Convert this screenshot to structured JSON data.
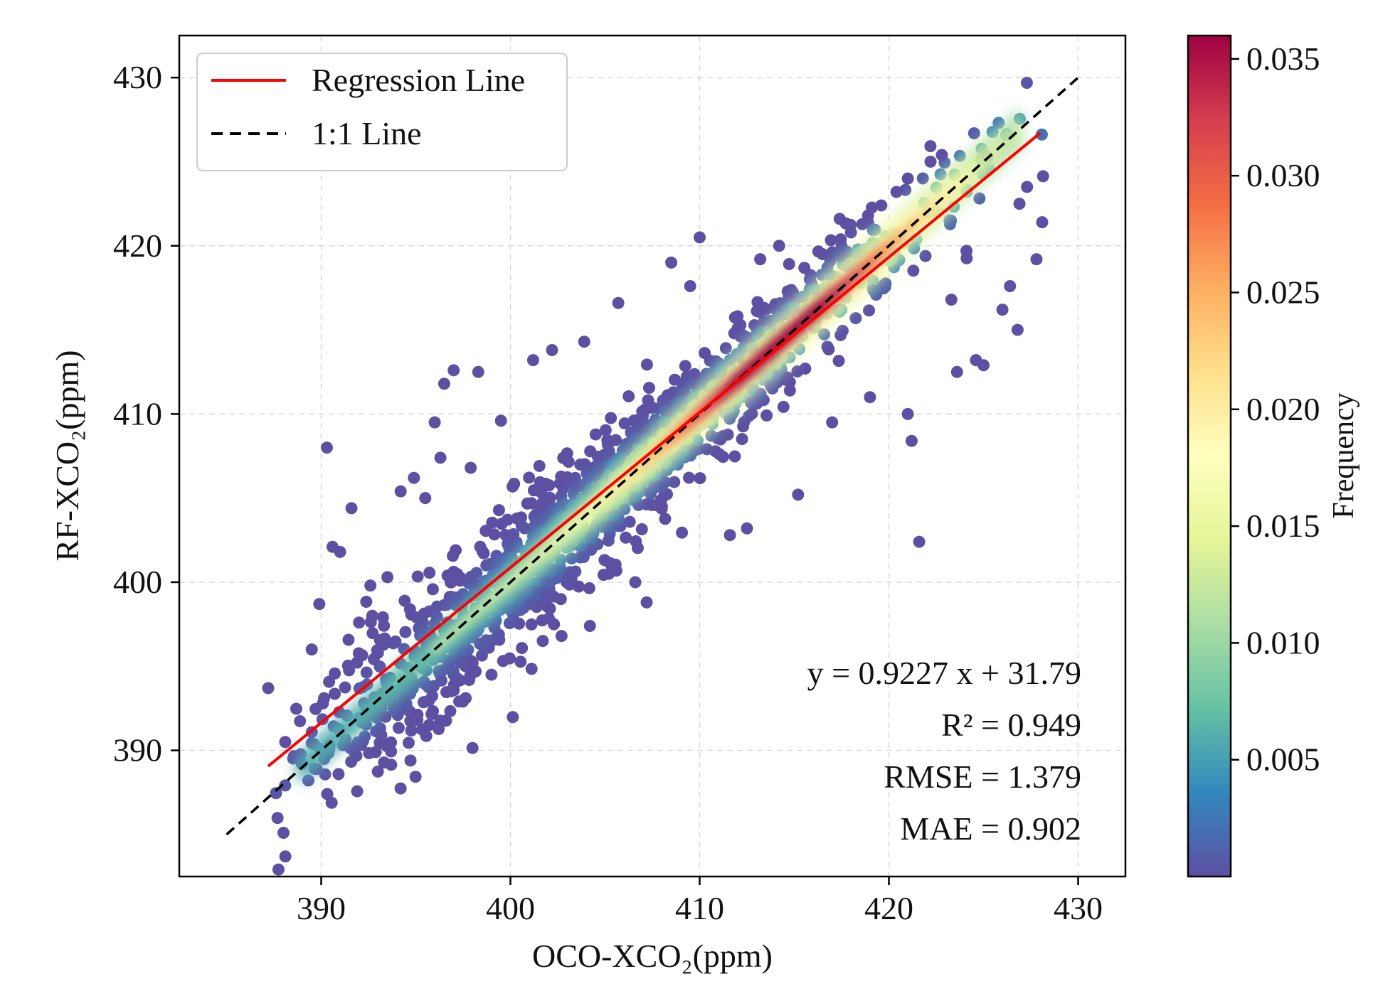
{
  "chart_data": {
    "type": "scatter",
    "title": "",
    "xlabel": "OCO-XCO₂(ppm)",
    "ylabel": "RF-XCO₂(ppm)",
    "xlim": [
      382.5,
      432.5
    ],
    "ylim": [
      382.5,
      432.5
    ],
    "xticks": [
      390,
      400,
      410,
      420,
      430
    ],
    "yticks": [
      390,
      400,
      410,
      420,
      430
    ],
    "grid": true,
    "legend_position": "top-left",
    "legend": [
      {
        "label": "Regression Line",
        "style": "solid",
        "color": "#ff0000"
      },
      {
        "label": "1:1 Line",
        "style": "dashed",
        "color": "#000000"
      }
    ],
    "regression": {
      "slope": 0.9227,
      "intercept": 31.79,
      "x_range": [
        387.2,
        428.0
      ]
    },
    "identity_line": {
      "x_range": [
        385,
        430
      ]
    },
    "annotations": [
      "y = 0.9227 x + 31.79",
      "R² = 0.949",
      "RMSE = 1.379",
      "MAE = 0.902"
    ],
    "colorbar": {
      "label": "Frequency",
      "min": 0.0,
      "max": 0.036,
      "ticks": [
        0.005,
        0.01,
        0.015,
        0.02,
        0.025,
        0.03,
        0.035
      ],
      "tick_labels": [
        "0.005",
        "0.010",
        "0.015",
        "0.020",
        "0.025",
        "0.030",
        "0.035"
      ],
      "colormap": "Spectral_r",
      "colors": [
        "#5e4fa2",
        "#3288bd",
        "#66c2a5",
        "#abdda4",
        "#e6f598",
        "#ffffbf",
        "#fee08b",
        "#fdae61",
        "#f46d43",
        "#d53e4f",
        "#9e0142"
      ]
    },
    "density_band": {
      "slope": 1.0,
      "intercept": 0.0,
      "peak_x": 414.3,
      "x_range": [
        387.5,
        428.5
      ]
    },
    "outliers": [
      [
        387.2,
        393.7
      ],
      [
        388.1,
        390.5
      ],
      [
        389.5,
        396.0
      ],
      [
        389.9,
        398.7
      ],
      [
        390.3,
        408.0
      ],
      [
        390.6,
        402.1
      ],
      [
        391.0,
        401.8
      ],
      [
        391.6,
        404.4
      ],
      [
        392.0,
        397.6
      ],
      [
        392.6,
        399.8
      ],
      [
        393.5,
        400.3
      ],
      [
        393.4,
        392.0
      ],
      [
        394.2,
        405.4
      ],
      [
        394.9,
        406.2
      ],
      [
        395.5,
        405.0
      ],
      [
        396.0,
        409.5
      ],
      [
        396.3,
        407.4
      ],
      [
        396.5,
        411.8
      ],
      [
        397.0,
        412.6
      ],
      [
        397.9,
        406.8
      ],
      [
        398.3,
        412.5
      ],
      [
        399.5,
        409.6
      ],
      [
        401.2,
        413.2
      ],
      [
        402.2,
        413.8
      ],
      [
        402.7,
        396.8
      ],
      [
        402.3,
        397.5
      ],
      [
        403.9,
        414.3
      ],
      [
        405.7,
        416.6
      ],
      [
        405.2,
        400.5
      ],
      [
        406.6,
        400.0
      ],
      [
        408.5,
        419.0
      ],
      [
        409.5,
        417.6
      ],
      [
        410.0,
        420.5
      ],
      [
        411.6,
        402.8
      ],
      [
        412.5,
        403.2
      ],
      [
        413.2,
        419.2
      ],
      [
        414.2,
        420.0
      ],
      [
        415.2,
        405.2
      ],
      [
        416.5,
        419.5
      ],
      [
        417.4,
        421.6
      ],
      [
        418.9,
        421.8
      ],
      [
        419.6,
        422.4
      ],
      [
        420.4,
        423.2
      ],
      [
        421.0,
        424.0
      ],
      [
        421.6,
        402.4
      ],
      [
        421.2,
        408.4
      ],
      [
        421.0,
        410.0
      ],
      [
        422.2,
        425.0
      ],
      [
        422.8,
        425.4
      ],
      [
        423.6,
        412.5
      ],
      [
        424.6,
        413.2
      ],
      [
        425.0,
        412.9
      ],
      [
        425.2,
        425.3
      ],
      [
        426.0,
        416.2
      ],
      [
        426.4,
        417.6
      ],
      [
        426.8,
        415.0
      ],
      [
        427.3,
        423.5
      ],
      [
        427.8,
        419.2
      ],
      [
        428.1,
        421.4
      ],
      [
        426.9,
        422.5
      ],
      [
        424.1,
        419.7
      ],
      [
        423.3,
        416.8
      ],
      [
        419.0,
        411.0
      ],
      [
        417.0,
        409.5
      ],
      [
        407.2,
        398.8
      ],
      [
        404.2,
        397.4
      ],
      [
        399.0,
        394.5
      ],
      [
        398.0,
        395.2
      ],
      [
        393.0,
        395.8
      ],
      [
        392.7,
        398.0
      ]
    ]
  }
}
